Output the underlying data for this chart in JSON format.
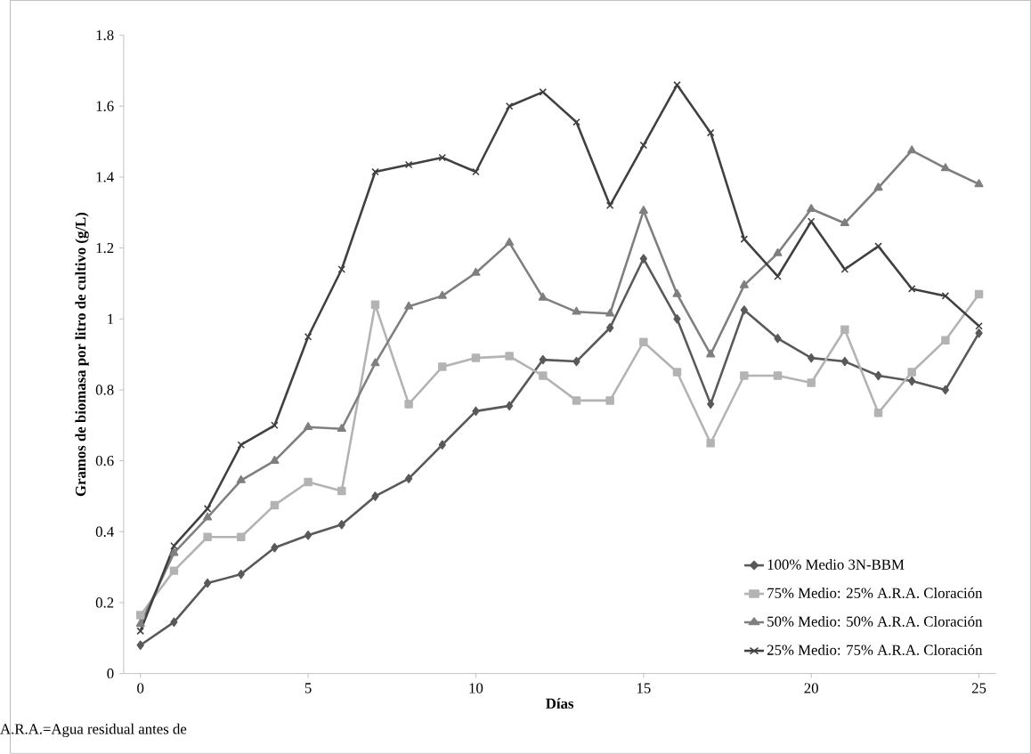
{
  "chart_data": {
    "type": "line",
    "xlabel": "Días",
    "ylabel": "Gramos de biomasa por litro de cultivo (g/L)",
    "x": [
      0,
      1,
      2,
      3,
      4,
      5,
      6,
      7,
      8,
      9,
      10,
      11,
      12,
      13,
      14,
      15,
      16,
      17,
      18,
      19,
      20,
      21,
      22,
      23,
      24,
      25
    ],
    "series": [
      {
        "name": "100% Medio 3N-BBM",
        "color": "#595959",
        "marker": "diamond",
        "values": [
          0.08,
          0.145,
          0.255,
          0.28,
          0.355,
          0.39,
          0.42,
          0.5,
          0.55,
          0.645,
          0.74,
          0.755,
          0.885,
          0.88,
          0.975,
          1.17,
          1.0,
          0.76,
          1.025,
          0.945,
          0.89,
          0.88,
          0.84,
          0.825,
          0.8,
          0.96
        ]
      },
      {
        "name": "75% Medio: 25% A.R.A. Cloración",
        "color": "#b3b3b3",
        "marker": "square",
        "values": [
          0.165,
          0.29,
          0.385,
          0.385,
          0.475,
          0.54,
          0.515,
          1.04,
          0.76,
          0.865,
          0.89,
          0.895,
          0.84,
          0.77,
          0.77,
          0.935,
          0.85,
          0.65,
          0.84,
          0.84,
          0.82,
          0.97,
          0.735,
          0.85,
          0.94,
          1.07
        ]
      },
      {
        "name": "50% Medio: 50% A.R.A. Cloración",
        "color": "#7f7f7f",
        "marker": "triangle",
        "values": [
          0.14,
          0.34,
          0.44,
          0.545,
          0.6,
          0.695,
          0.69,
          0.875,
          1.035,
          1.065,
          1.13,
          1.215,
          1.06,
          1.02,
          1.015,
          1.305,
          1.07,
          0.9,
          1.095,
          1.185,
          1.31,
          1.27,
          1.37,
          1.475,
          1.425,
          1.38
        ]
      },
      {
        "name": "25% Medio: 75% A.R.A. Cloración",
        "color": "#404040",
        "marker": "cross",
        "values": [
          0.12,
          0.36,
          0.465,
          0.645,
          0.7,
          0.95,
          1.14,
          1.415,
          1.435,
          1.455,
          1.415,
          1.6,
          1.64,
          1.555,
          1.32,
          1.49,
          1.66,
          1.525,
          1.225,
          1.12,
          1.275,
          1.14,
          1.205,
          1.085,
          1.065,
          0.98
        ]
      }
    ],
    "xlim": [
      -0.5,
      25.5
    ],
    "xticks": [
      0,
      5,
      10,
      15,
      20,
      25
    ],
    "ylim": [
      0,
      1.8
    ],
    "yticks": [
      0,
      0.2,
      0.4,
      0.6,
      0.8,
      1,
      1.2,
      1.4,
      1.6,
      1.8
    ],
    "grid": false,
    "legend": "bottom right",
    "line_style": "solid",
    "annotations": [
      "A.R.A.=Agua residual antes de"
    ]
  }
}
